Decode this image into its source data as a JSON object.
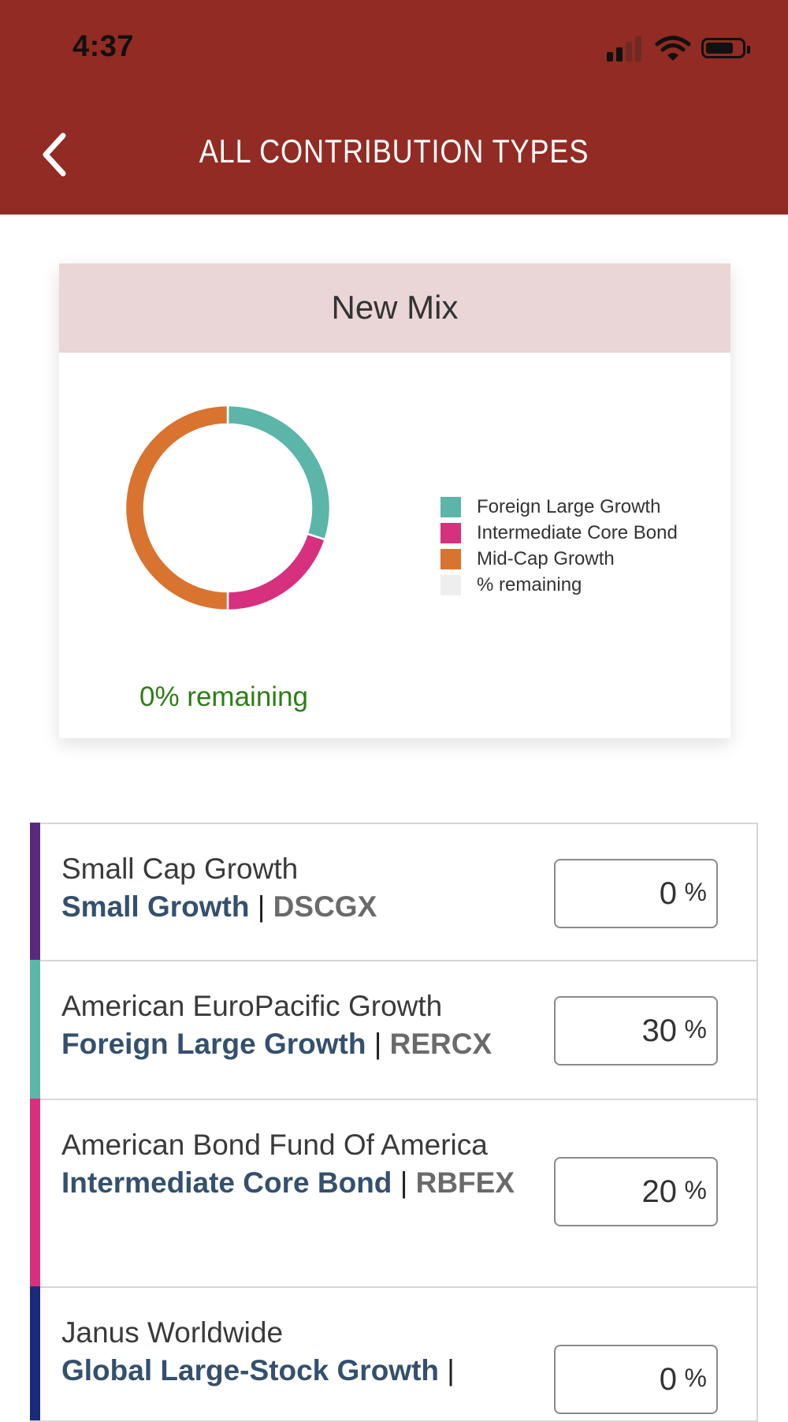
{
  "status_bar": {
    "time": "4:37"
  },
  "header": {
    "title": "ALL CONTRIBUTION TYPES"
  },
  "mix_card": {
    "title": "New Mix",
    "remaining_text": "0% remaining",
    "legend": [
      {
        "label": "Foreign Large Growth",
        "color": "#5bb5a8"
      },
      {
        "label": "Intermediate Core Bond",
        "color": "#d6307e"
      },
      {
        "label": "Mid-Cap Growth",
        "color": "#d8742f"
      },
      {
        "label": "% remaining",
        "color": "#eeeeee"
      }
    ]
  },
  "chart_data": {
    "type": "pie",
    "donut": true,
    "slices": [
      {
        "label": "Foreign Large Growth",
        "value": 30,
        "color": "#5bb5a8"
      },
      {
        "label": "Intermediate Core Bond",
        "value": 20,
        "color": "#d6307e"
      },
      {
        "label": "Mid-Cap Growth",
        "value": 50,
        "color": "#d8742f"
      },
      {
        "label": "% remaining",
        "value": 0,
        "color": "#eeeeee"
      }
    ],
    "legend_position": "right"
  },
  "funds": [
    {
      "name": "Small Cap Growth",
      "category": "Small Growth",
      "separator": "|",
      "ticker": "DSCGX",
      "percent": "0",
      "unit": "%",
      "color": "#5a2a7a"
    },
    {
      "name": "American EuroPacific Growth",
      "category": "Foreign Large Growth",
      "separator": "|",
      "ticker": "RERCX",
      "percent": "30",
      "unit": "%",
      "color": "#5bb5a8"
    },
    {
      "name": "American Bond Fund Of America",
      "category": "Intermediate Core Bond",
      "separator": "|",
      "ticker": "RBFEX",
      "percent": "20",
      "unit": "%",
      "color": "#d6307e"
    },
    {
      "name": "Janus Worldwide",
      "category": "Global Large-Stock Growth",
      "separator": "|",
      "ticker": "",
      "percent": "0",
      "unit": "%",
      "color": "#1b2a7a"
    }
  ]
}
